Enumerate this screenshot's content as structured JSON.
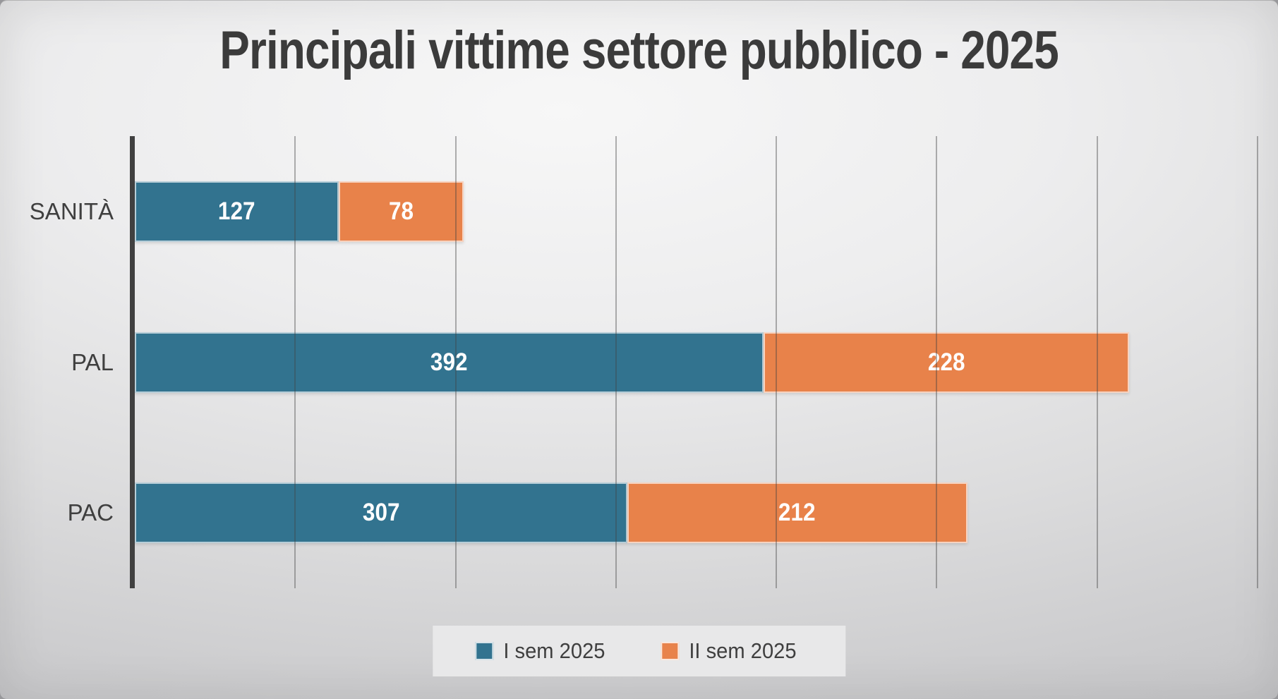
{
  "title": "Principali vittime settore pubblico - 2025",
  "theme": {
    "title_color": "#3b3b3b",
    "label_color": "#3f3f3f",
    "value_text_color": "#ffffff",
    "axis_color": "#404040",
    "gridline_color": "rgba(64,64,64,0.40)",
    "legend_background": "#e8e8e9",
    "series_blue": "#32738f",
    "series_orange": "#e8824a"
  },
  "chart_data": {
    "type": "bar",
    "orientation": "horizontal",
    "stacked": true,
    "title": "Principali vittime settore pubblico - 2025",
    "categories": [
      "SANITÀ",
      "PAL",
      "PAC"
    ],
    "series": [
      {
        "name": "I sem 2025",
        "color": "#32738f",
        "values": [
          127,
          392,
          307
        ]
      },
      {
        "name": "II sem 2025",
        "color": "#e8824a",
        "values": [
          78,
          228,
          212
        ]
      }
    ],
    "totals": [
      205,
      620,
      519
    ],
    "xlabel": "",
    "ylabel": "",
    "xlim": [
      0,
      700
    ],
    "gridline_interval": 100,
    "grid": true,
    "bar_labels": true,
    "legend_position": "bottom"
  }
}
